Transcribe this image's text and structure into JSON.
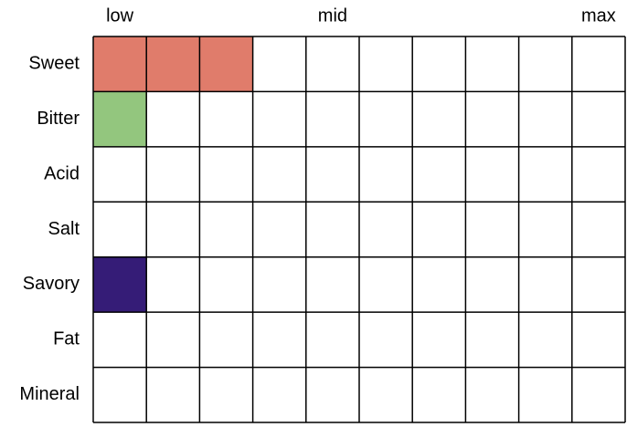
{
  "chart_data": {
    "type": "cellbar",
    "categories": [
      "Sweet",
      "Bitter",
      "Acid",
      "Salt",
      "Savory",
      "Fat",
      "Mineral"
    ],
    "values": [
      3,
      1,
      0,
      0,
      1,
      0,
      0
    ],
    "colors": [
      "#e07c6b",
      "#93c67e",
      null,
      null,
      "#351c77",
      null,
      null
    ],
    "xlim": [
      0,
      10
    ],
    "xticks": [
      {
        "value": 1,
        "label": "low"
      },
      {
        "value": 5,
        "label": "mid"
      },
      {
        "value": 10,
        "label": "max"
      }
    ]
  }
}
